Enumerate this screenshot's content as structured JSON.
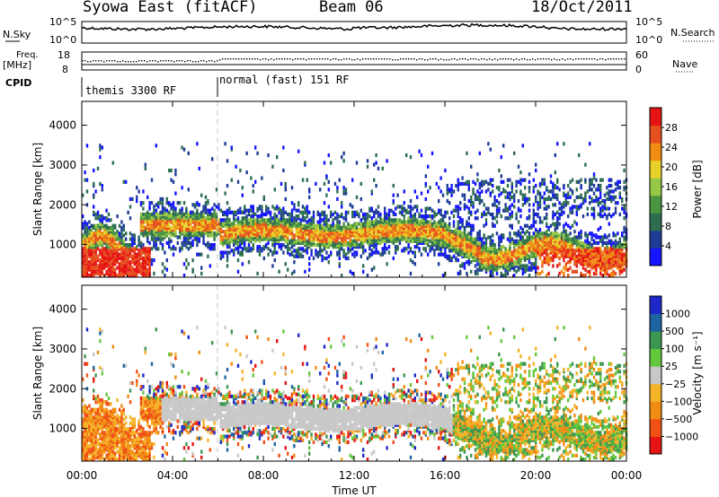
{
  "header": {
    "station": "Syowa East (fitACF)",
    "beam": "Beam 06",
    "date": "18/Oct/2011"
  },
  "left_labels": {
    "nsky": "N.Sky",
    "freq": "Freq.",
    "freq_unit": "[MHz]",
    "cpid": "CPID"
  },
  "right_labels": {
    "nsearch": "N.Search",
    "nave": "Nave"
  },
  "nsky_axis": {
    "top": "10^5",
    "bottom": "10^0"
  },
  "freq_axis": {
    "top": "18",
    "bottom": "8"
  },
  "nave_axis": {
    "top": "60",
    "bottom": "0"
  },
  "cpid_segments": [
    {
      "label": "themis 3300 RF",
      "start_hour": 0
    },
    {
      "label": "normal (fast) 151 RF",
      "start_hour": 6
    }
  ],
  "colors": {
    "power": [
      "#1414ff",
      "#1e3c96",
      "#2d6e50",
      "#4a9640",
      "#96c846",
      "#e6d228",
      "#f08c14",
      "#e6501e",
      "#e61414"
    ],
    "velocity": [
      "#e61414",
      "#f05014",
      "#f08c14",
      "#f5b428",
      "#c8c8c8",
      "#64c83c",
      "#3c9650",
      "#1e64a0",
      "#1e28c8"
    ]
  },
  "chart_data": [
    {
      "type": "heatmap",
      "title": "",
      "xlabel": "Time UT",
      "ylabel": "Slant Range [km]",
      "x_ticks": [
        "00:00",
        "04:00",
        "08:00",
        "12:00",
        "16:00",
        "20:00",
        "00:00"
      ],
      "x_range_hours": [
        0,
        24
      ],
      "y_ticks": [
        1000,
        2000,
        3000,
        4000
      ],
      "ylim": [
        180,
        4600
      ],
      "colorbar": {
        "label": "Power [dB]",
        "ticks": [
          4,
          8,
          12,
          16,
          20,
          24,
          28
        ],
        "range": [
          0,
          30
        ]
      }
    },
    {
      "type": "heatmap",
      "title": "",
      "xlabel": "Time UT",
      "ylabel": "Slant Range [km]",
      "x_ticks": [
        "00:00",
        "04:00",
        "08:00",
        "12:00",
        "16:00",
        "20:00",
        "00:00"
      ],
      "x_range_hours": [
        0,
        24
      ],
      "y_ticks": [
        1000,
        2000,
        3000,
        4000
      ],
      "ylim": [
        180,
        4600
      ],
      "colorbar": {
        "label": "Velocity [m s⁻¹]",
        "ticks": [
          "1000",
          "500",
          "100",
          "25",
          "−25",
          "−100",
          "−500",
          "−1000"
        ],
        "range": [
          -1000,
          1000
        ]
      }
    }
  ]
}
